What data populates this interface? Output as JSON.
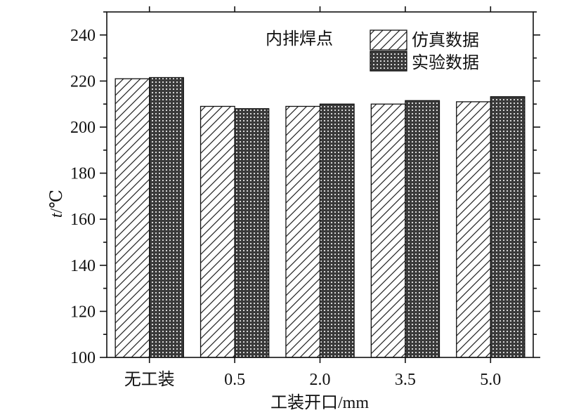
{
  "chart_data": {
    "type": "bar",
    "title": "",
    "annotation": "内排焊点",
    "xlabel_cjk": "工装开口",
    "xlabel_unit": "/mm",
    "ylabel_var": "t",
    "ylabel_unit": "/℃",
    "categories": [
      "无工装",
      "0.5",
      "2.0",
      "3.5",
      "5.0"
    ],
    "series": [
      {
        "name": "仿真数据",
        "values": [
          221,
          209,
          209,
          210,
          211
        ]
      },
      {
        "name": "实验数据",
        "values": [
          221.5,
          208,
          210,
          211.5,
          213.2
        ]
      }
    ],
    "ylim": [
      100,
      250
    ],
    "yticks": [
      100,
      120,
      140,
      160,
      180,
      200,
      220,
      240
    ],
    "grid": false,
    "legend": "top-right"
  }
}
